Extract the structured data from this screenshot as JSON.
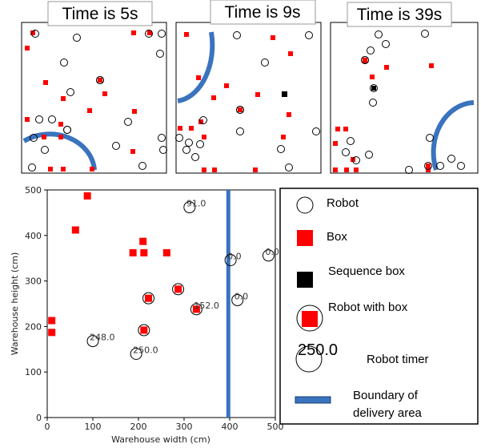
{
  "panels": [
    {
      "title": "Time is 5s"
    },
    {
      "title": "Time is 9s"
    },
    {
      "title": "Time is 39s"
    }
  ],
  "legend": {
    "robot": "Robot",
    "box": "Box",
    "sequence_box": "Sequence box",
    "robot_with_box": "Robot with box",
    "robot_timer_value": "250.0",
    "robot_timer": "Robot timer",
    "boundary_line1": "Boundary of",
    "boundary_line2": "delivery area"
  },
  "colors": {
    "box": "#ff0000",
    "boundary": "#3a73be",
    "sequence": "#000000"
  },
  "chart_data": {
    "type": "scatter",
    "xlabel": "Warehouse width (cm)",
    "ylabel": "Warehouse height (cm)",
    "xlim": [
      0,
      500
    ],
    "ylim": [
      0,
      500
    ],
    "xticks": [
      "0",
      "100",
      "200",
      "300",
      "400",
      "500"
    ],
    "yticks": [
      "0",
      "100",
      "200",
      "300",
      "400",
      "500"
    ],
    "boundary_x": 397,
    "boxes": [
      [
        88,
        487
      ],
      [
        62,
        412
      ],
      [
        210,
        387
      ],
      [
        188,
        362
      ],
      [
        212,
        362
      ],
      [
        262,
        362
      ],
      [
        10,
        213
      ],
      [
        10,
        187
      ]
    ],
    "robots_with_box": [
      [
        222,
        262
      ],
      [
        287,
        282
      ],
      [
        327,
        238
      ],
      [
        212,
        192
      ]
    ],
    "robots": [
      {
        "x": 312,
        "y": 462,
        "label": "91.0"
      },
      {
        "x": 402,
        "y": 346,
        "label": "0.0"
      },
      {
        "x": 485,
        "y": 356,
        "label": "0.0"
      },
      {
        "x": 417,
        "y": 258,
        "label": "0.0"
      },
      {
        "x": 100,
        "y": 168,
        "label": "248.0"
      },
      {
        "x": 195,
        "y": 140,
        "label": "250.0"
      }
    ],
    "robot_labels_on_box": [
      {
        "x": 327,
        "y": 238,
        "label": "152.0"
      }
    ]
  }
}
